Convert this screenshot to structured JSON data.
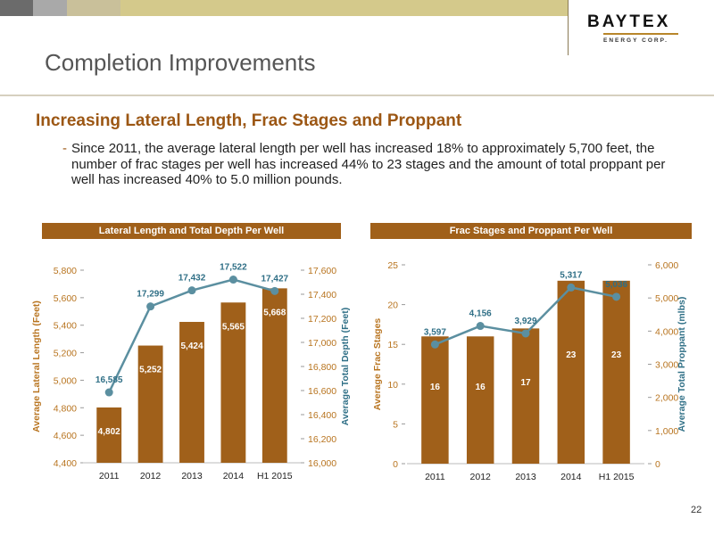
{
  "header": {
    "page_title": "Completion Improvements",
    "logo_main": "BAYTEX",
    "logo_sub": "ENERGY CORP.",
    "bar_colors": [
      "#6b6b6b",
      "#a9a9a9",
      "#c9c09a",
      "#d4c98b",
      "#b28a3a"
    ]
  },
  "section": {
    "heading": "Increasing Lateral Length, Frac Stages and Proppant",
    "bullet_marker": "-",
    "bullet": "Since 2011, the average lateral length per well has increased 18% to approximately 5,700 feet, the number of frac stages per well has increased 44% to 23 stages and the amount of total proppant per well has increased 40% to 5.0 million pounds."
  },
  "page_number": "22",
  "colors": {
    "bar": "#a0601a",
    "line": "#5b8fa0",
    "heading": "#9c5714",
    "line_label": "#2f6f86"
  },
  "chart_data": [
    {
      "type": "bar",
      "title": "Lateral Length and Total Depth Per Well",
      "categories": [
        "2011",
        "2012",
        "2013",
        "2014",
        "H1 2015"
      ],
      "ylabel": "Average Lateral Length (Feet)",
      "ylim": [
        4400,
        5800
      ],
      "yticks": [
        "4,400",
        "4,600",
        "4,800",
        "5,000",
        "5,200",
        "5,400",
        "5,600",
        "5,800"
      ],
      "y2label": "Average Total Depth (Feet)",
      "y2lim": [
        16000,
        17600
      ],
      "y2ticks": [
        "16,000",
        "16,200",
        "16,400",
        "16,600",
        "16,800",
        "17,000",
        "17,200",
        "17,400",
        "17,600"
      ],
      "series": [
        {
          "name": "Average Lateral Length (Feet)",
          "kind": "bar",
          "axis": "left",
          "values": [
            4802,
            5252,
            5424,
            5565,
            5668
          ],
          "labels": [
            "4,802",
            "5,252",
            "5,424",
            "5,565",
            "5,668"
          ]
        },
        {
          "name": "Average Total Depth (Feet)",
          "kind": "line",
          "axis": "right",
          "values": [
            16585,
            17299,
            17432,
            17522,
            17427
          ],
          "labels": [
            "16,585",
            "17,299",
            "17,432",
            "17,522",
            "17,427"
          ]
        }
      ],
      "grid": false
    },
    {
      "type": "bar",
      "title": "Frac Stages and Proppant Per Well",
      "categories": [
        "2011",
        "2012",
        "2013",
        "2014",
        "H1 2015"
      ],
      "ylabel": "Average Frac Stages",
      "ylim": [
        0,
        25
      ],
      "yticks": [
        "0",
        "5",
        "10",
        "15",
        "20",
        "25"
      ],
      "y2label": "Average Total Proppant (mlbs)",
      "y2lim": [
        0,
        6000
      ],
      "y2ticks": [
        "0",
        "1,000",
        "2,000",
        "3,000",
        "4,000",
        "5,000",
        "6,000"
      ],
      "series": [
        {
          "name": "Average Frac Stages",
          "kind": "bar",
          "axis": "left",
          "values": [
            16,
            16,
            17,
            23,
            23
          ],
          "labels": [
            "16",
            "16",
            "17",
            "23",
            "23"
          ]
        },
        {
          "name": "Average Total Proppant (mlbs)",
          "kind": "line",
          "axis": "right",
          "values": [
            3597,
            4156,
            3929,
            5317,
            5036
          ],
          "labels": [
            "3,597",
            "4,156",
            "3,929",
            "5,317",
            "5,036"
          ]
        }
      ],
      "grid": false
    }
  ]
}
